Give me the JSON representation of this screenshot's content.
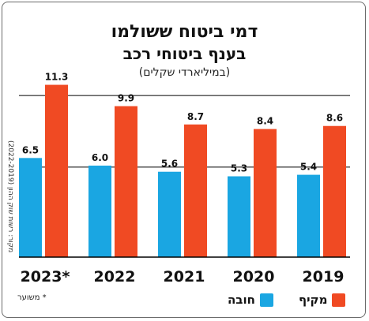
{
  "title_line1": "דמי ביטוח ששולמו",
  "title_line2": "בענף ביטוחי רכב",
  "subtitle": "(במיליארדי שקלים)",
  "source": "מקור: רשות שוק ההון (2022-2019)",
  "footnote": "* משוער",
  "colors": {
    "makif": "#f04a23",
    "hova": "#1aa6e2"
  },
  "chart_data": {
    "type": "bar",
    "categories": [
      "2023*",
      "2022",
      "2021",
      "2020",
      "2019"
    ],
    "series": [
      {
        "name": "חובה",
        "values": [
          6.5,
          6.0,
          5.6,
          5.3,
          5.4
        ]
      },
      {
        "name": "מקיף",
        "values": [
          11.3,
          9.9,
          8.7,
          8.4,
          8.6
        ]
      }
    ],
    "ylim": [
      0,
      12
    ],
    "gridlines": [
      5.9,
      10.6
    ],
    "legend": [
      "מקיף",
      "חובה"
    ],
    "legend_position": "bottom-right"
  }
}
